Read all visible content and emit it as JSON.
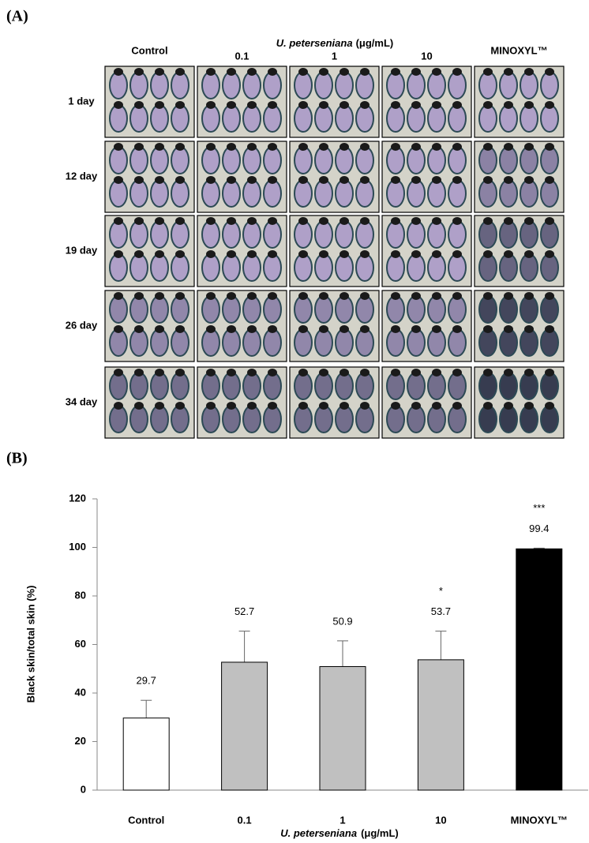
{
  "panel_a": {
    "label": "(A)",
    "columns": [
      "Control",
      "0.1",
      "1",
      "10",
      "MINOXYL™"
    ],
    "group_italic": "U. peterseniana",
    "group_unit": "(μg/mL)",
    "rows": [
      "1 day",
      "12 day",
      "19 day",
      "26 day",
      "34 day"
    ]
  },
  "panel_b": {
    "label": "(B)"
  },
  "chart_data": {
    "type": "bar",
    "ylabel": "Black skin/total skin (%)",
    "xlabel_italic": "U. peterseniana",
    "xlabel_unit": "(μg/mL)",
    "categories": [
      "Control",
      "0.1",
      "1",
      "10",
      "MINOXYL™"
    ],
    "values": [
      29.7,
      52.7,
      50.9,
      53.7,
      99.4
    ],
    "errors": [
      7.3,
      12.8,
      10.6,
      11.8,
      0.3
    ],
    "significance": [
      null,
      null,
      null,
      "*",
      "***"
    ],
    "colors": [
      "#ffffff",
      "#c0c0c0",
      "#c0c0c0",
      "#c0c0c0",
      "#000000"
    ],
    "ylim": [
      0,
      120
    ],
    "yticks": [
      0,
      20,
      40,
      60,
      80,
      100,
      120
    ]
  }
}
